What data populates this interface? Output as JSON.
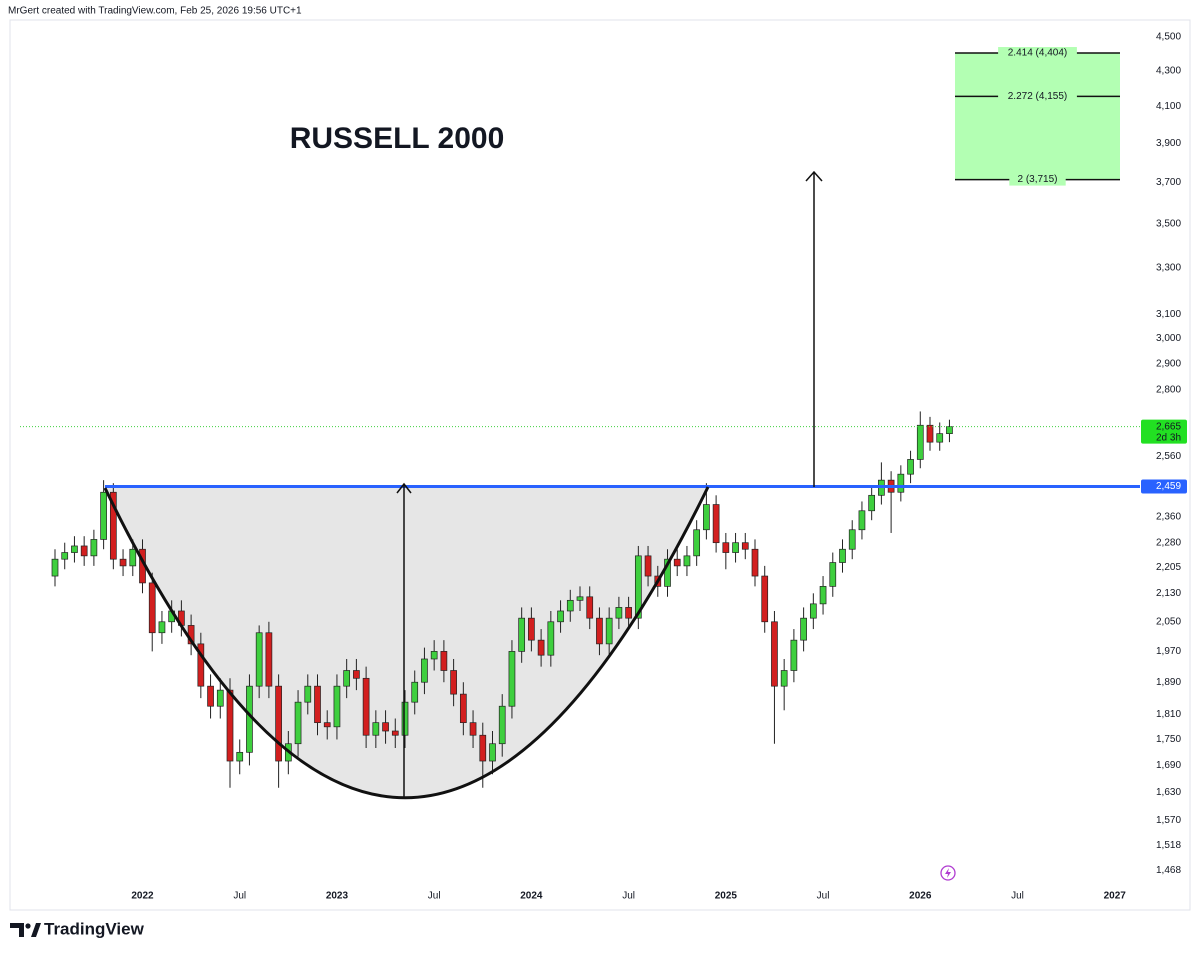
{
  "header": "MrGert created with TradingView.com, Feb 25, 2026 19:56 UTC+1",
  "brand": "TradingView",
  "chart_data": {
    "type": "candlestick",
    "title": "RUSSELL 2000",
    "log_scale": true,
    "grid": false,
    "up_color": "#3ecf3e",
    "down_color": "#d21f1f",
    "xlim": [
      2021.37,
      2027.13
    ],
    "ylim": [
      1439,
      4604
    ],
    "xticks": [
      2022,
      {
        "value": 2022.5,
        "label": "Jul"
      },
      2023,
      {
        "value": 2023.5,
        "label": "Jul"
      },
      2024,
      {
        "value": 2024.5,
        "label": "Jul"
      },
      2025,
      {
        "value": 2025.5,
        "label": "Jul"
      },
      2026,
      {
        "value": 2026.5,
        "label": "Jul"
      },
      2027
    ],
    "yticks": [
      {
        "value": 4500,
        "label": "4,500"
      },
      {
        "value": 4300,
        "label": "4,300"
      },
      {
        "value": 4100,
        "label": "4,100"
      },
      {
        "value": 3900,
        "label": "3,900"
      },
      {
        "value": 3700,
        "label": "3,700"
      },
      {
        "value": 3500,
        "label": "3,500"
      },
      {
        "value": 3300,
        "label": "3,300"
      },
      {
        "value": 3100,
        "label": "3,100"
      },
      {
        "value": 3000,
        "label": "3,000"
      },
      {
        "value": 2900,
        "label": "2,900"
      },
      {
        "value": 2800,
        "label": "2,800"
      },
      {
        "value": 2560,
        "label": "2,560"
      },
      {
        "value": 2360,
        "label": "2,360"
      },
      {
        "value": 2280,
        "label": "2,280"
      },
      {
        "value": 2205,
        "label": "2,205"
      },
      {
        "value": 2130,
        "label": "2,130"
      },
      {
        "value": 2050,
        "label": "2,050"
      },
      {
        "value": 1970,
        "label": "1,970"
      },
      {
        "value": 1890,
        "label": "1,890"
      },
      {
        "value": 1810,
        "label": "1,810"
      },
      {
        "value": 1750,
        "label": "1,750"
      },
      {
        "value": 1690,
        "label": "1,690"
      },
      {
        "value": 1630,
        "label": "1,630"
      },
      {
        "value": 1570,
        "label": "1,570"
      },
      {
        "value": 1518,
        "label": "1,518"
      },
      {
        "value": 1468,
        "label": "1,468"
      }
    ],
    "price_line": {
      "value": 2459,
      "label": "2,459",
      "color": "#2962ff"
    },
    "last_price_label": "2,665",
    "countdown": "2d 3h",
    "fib_levels": [
      {
        "value": 4404,
        "label": "2.414 (4,404)"
      },
      {
        "value": 4155,
        "label": "2.272 (4,155)"
      },
      {
        "value": 3715,
        "label": "2 (3,715)"
      }
    ],
    "fib_color": "#b3ffb3",
    "candles": {
      "x": [
        2021.55,
        2021.6,
        2021.65,
        2021.7,
        2021.75,
        2021.8,
        2021.85,
        2021.9,
        2021.95,
        2022.0,
        2022.05,
        2022.1,
        2022.15,
        2022.2,
        2022.25,
        2022.3,
        2022.35,
        2022.4,
        2022.45,
        2022.5,
        2022.55,
        2022.6,
        2022.65,
        2022.7,
        2022.75,
        2022.8,
        2022.85,
        2022.9,
        2022.95,
        2023.0,
        2023.05,
        2023.1,
        2023.15,
        2023.2,
        2023.25,
        2023.3,
        2023.35,
        2023.4,
        2023.45,
        2023.5,
        2023.55,
        2023.6,
        2023.65,
        2023.7,
        2023.75,
        2023.8,
        2023.85,
        2023.9,
        2023.95,
        2024.0,
        2024.05,
        2024.1,
        2024.15,
        2024.2,
        2024.25,
        2024.3,
        2024.35,
        2024.4,
        2024.45,
        2024.5,
        2024.55,
        2024.6,
        2024.65,
        2024.7,
        2024.75,
        2024.8,
        2024.85,
        2024.9,
        2024.95,
        2025.0,
        2025.05,
        2025.1,
        2025.15,
        2025.2,
        2025.25,
        2025.3,
        2025.35,
        2025.4,
        2025.45,
        2025.5,
        2025.55,
        2025.6,
        2025.65,
        2025.7,
        2025.75,
        2025.8,
        2025.85,
        2025.9,
        2025.95,
        2026.0,
        2026.05,
        2026.1,
        2026.15
      ],
      "open": [
        2180,
        2230,
        2250,
        2270,
        2240,
        2290,
        2440,
        2230,
        2210,
        2260,
        2160,
        2020,
        2050,
        2080,
        2040,
        1990,
        1880,
        1830,
        1870,
        1700,
        1720,
        1880,
        2020,
        1880,
        1700,
        1740,
        1840,
        1880,
        1790,
        1780,
        1880,
        1920,
        1900,
        1760,
        1790,
        1770,
        1760,
        1840,
        1890,
        1950,
        1970,
        1920,
        1860,
        1790,
        1760,
        1700,
        1740,
        1830,
        1970,
        2060,
        2000,
        1960,
        2050,
        2080,
        2110,
        2120,
        2060,
        1990,
        2060,
        2090,
        2060,
        2240,
        2180,
        2150,
        2230,
        2210,
        2240,
        2320,
        2400,
        2280,
        2250,
        2280,
        2260,
        2180,
        2050,
        1880,
        1920,
        2000,
        2060,
        2100,
        2150,
        2220,
        2260,
        2320,
        2380,
        2430,
        2480,
        2440,
        2500,
        2550,
        2670,
        2610,
        2640
      ],
      "high": [
        2260,
        2280,
        2300,
        2300,
        2320,
        2480,
        2470,
        2260,
        2290,
        2290,
        2190,
        2080,
        2110,
        2110,
        2070,
        2020,
        1910,
        1900,
        1900,
        1750,
        1910,
        2040,
        2050,
        1910,
        1770,
        1870,
        1910,
        1910,
        1820,
        1910,
        1950,
        1950,
        1930,
        1820,
        1820,
        1800,
        1870,
        1920,
        1980,
        2000,
        2000,
        1950,
        1890,
        1820,
        1790,
        1770,
        1860,
        2000,
        2090,
        2090,
        2030,
        2080,
        2110,
        2140,
        2150,
        2150,
        2090,
        2090,
        2120,
        2120,
        2270,
        2270,
        2210,
        2260,
        2260,
        2270,
        2350,
        2470,
        2430,
        2310,
        2310,
        2310,
        2290,
        2210,
        2080,
        1950,
        2030,
        2090,
        2130,
        2180,
        2250,
        2290,
        2350,
        2410,
        2460,
        2540,
        2510,
        2530,
        2580,
        2720,
        2700,
        2680,
        2690
      ],
      "low": [
        2150,
        2200,
        2220,
        2210,
        2210,
        2260,
        2200,
        2180,
        2180,
        2130,
        1970,
        1990,
        2020,
        2010,
        1960,
        1850,
        1800,
        1800,
        1640,
        1670,
        1690,
        1850,
        1850,
        1640,
        1670,
        1710,
        1810,
        1760,
        1750,
        1750,
        1850,
        1870,
        1730,
        1730,
        1740,
        1730,
        1730,
        1810,
        1860,
        1920,
        1890,
        1830,
        1760,
        1730,
        1640,
        1670,
        1710,
        1800,
        1940,
        1970,
        1930,
        1930,
        2020,
        2050,
        2080,
        2030,
        1960,
        1960,
        2030,
        2030,
        2030,
        2150,
        2120,
        2120,
        2180,
        2180,
        2210,
        2290,
        2250,
        2200,
        2220,
        2230,
        2150,
        2020,
        1740,
        1820,
        1890,
        1970,
        2030,
        2070,
        2120,
        2190,
        2230,
        2290,
        2350,
        2400,
        2310,
        2410,
        2470,
        2520,
        2580,
        2580,
        2610
      ],
      "close": [
        2230,
        2250,
        2270,
        2240,
        2290,
        2440,
        2230,
        2210,
        2260,
        2160,
        2020,
        2050,
        2080,
        2040,
        1990,
        1880,
        1830,
        1870,
        1700,
        1720,
        1880,
        2020,
        1880,
        1700,
        1740,
        1840,
        1880,
        1790,
        1780,
        1880,
        1920,
        1900,
        1760,
        1790,
        1770,
        1760,
        1840,
        1890,
        1950,
        1970,
        1920,
        1860,
        1790,
        1760,
        1700,
        1740,
        1830,
        1970,
        2060,
        2000,
        1960,
        2050,
        2080,
        2110,
        2120,
        2060,
        1990,
        2060,
        2090,
        2060,
        2240,
        2180,
        2150,
        2230,
        2210,
        2240,
        2320,
        2400,
        2280,
        2250,
        2280,
        2260,
        2180,
        2050,
        1880,
        1920,
        2000,
        2060,
        2100,
        2150,
        2220,
        2260,
        2320,
        2380,
        2430,
        2480,
        2440,
        2500,
        2550,
        2670,
        2610,
        2640,
        2665
      ]
    }
  }
}
